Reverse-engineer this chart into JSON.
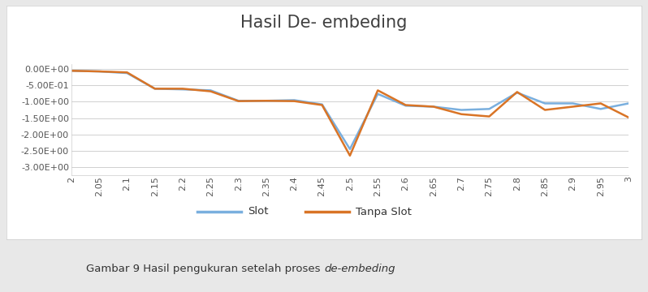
{
  "title": "Hasil De- embeding",
  "x_values": [
    2.0,
    2.05,
    2.1,
    2.15,
    2.2,
    2.25,
    2.3,
    2.35,
    2.4,
    2.45,
    2.5,
    2.55,
    2.6,
    2.65,
    2.7,
    2.75,
    2.8,
    2.85,
    2.9,
    2.95,
    3.0
  ],
  "x_labels": [
    "2",
    "2.05",
    "2.1",
    "2.15",
    "2.2",
    "2.25",
    "2.3",
    "2.35",
    "2.4",
    "2.45",
    "2.5",
    "2.55",
    "2.6",
    "2.65",
    "2.7",
    "2.75",
    "2.8",
    "2.85",
    "2.9",
    "2.95",
    "3"
  ],
  "slot": [
    -0.05,
    -0.07,
    -0.12,
    -0.6,
    -0.62,
    -0.65,
    -0.97,
    -0.97,
    -0.95,
    -1.08,
    -2.45,
    -0.76,
    -1.12,
    -1.15,
    -1.25,
    -1.22,
    -0.72,
    -1.05,
    -1.05,
    -1.22,
    -1.05
  ],
  "tanpa_slot": [
    -0.05,
    -0.07,
    -0.1,
    -0.6,
    -0.6,
    -0.68,
    -0.98,
    -0.97,
    -0.98,
    -1.1,
    -2.65,
    -0.65,
    -1.1,
    -1.15,
    -1.38,
    -1.45,
    -0.7,
    -1.25,
    -1.15,
    -1.05,
    -1.48
  ],
  "slot_color": "#7aafde",
  "tanpa_slot_color": "#d97426",
  "ylim_min": -3.25,
  "ylim_max": 0.15,
  "yticks": [
    0.0,
    -0.5,
    -1.0,
    -1.5,
    -2.0,
    -2.5,
    -3.0
  ],
  "ytick_labels": [
    "0.00E+00",
    "-5.00E-01",
    "-1.00E+00",
    "-1.50E+00",
    "-2.00E+00",
    "-2.50E+00",
    "-3.00E+00"
  ],
  "outer_bg": "#e8e8e8",
  "chart_bg": "#ffffff",
  "caption_normal": "Gambar 9 Hasil pengukuran setelah proses ",
  "caption_italic": "de-embeding",
  "legend_slot": "Slot",
  "legend_tanpa_slot": "Tanpa Slot",
  "title_fontsize": 15,
  "tick_fontsize": 8,
  "legend_fontsize": 9.5,
  "caption_fontsize": 9.5
}
